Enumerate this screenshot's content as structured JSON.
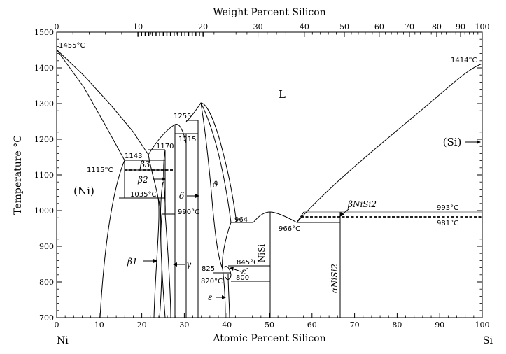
{
  "chart_data": {
    "type": "phase-diagram",
    "title": "",
    "xlabel_bottom": "Atomic Percent Silicon",
    "xlabel_top": "Weight Percent Silicon",
    "ylabel": "Temperature °C",
    "xlim": [
      0,
      100
    ],
    "ylim": [
      700,
      1500
    ],
    "x_ticks": [
      "0",
      "10",
      "20",
      "30",
      "40",
      "50",
      "60",
      "70",
      "80",
      "90",
      "100"
    ],
    "x_ticks_top": [
      {
        "label": "0",
        "at": 0
      },
      {
        "label": "10",
        "at": 19.1
      },
      {
        "label": "20",
        "at": 34.4
      },
      {
        "label": "30",
        "at": 47.3
      },
      {
        "label": "40",
        "at": 58.2
      },
      {
        "label": "50",
        "at": 67.6
      },
      {
        "label": "60",
        "at": 75.8
      },
      {
        "label": "70",
        "at": 82.9
      },
      {
        "label": "80",
        "at": 89.3
      },
      {
        "label": "90",
        "at": 94.9
      },
      {
        "label": "100",
        "at": 100
      }
    ],
    "y_ticks": [
      "700",
      "800",
      "900",
      "1000",
      "1100",
      "1200",
      "1300",
      "1400",
      "1500"
    ],
    "left_end": "Ni",
    "right_end": "Si",
    "regions": {
      "liquid": "L",
      "ni_solid": "(Ni)",
      "si_solid": "(Si)",
      "beta1": "β1",
      "beta2": "β2",
      "beta3": "β3",
      "gamma": "γ",
      "delta": "δ",
      "theta": "ϑ",
      "epsilon": "ε",
      "epsilon_prime": "ε′",
      "nisi": "NiSi",
      "alpha_nisi2": "αNiSi2",
      "beta_nisi2": "βNiSi2"
    },
    "temperature_labels": {
      "ni_melt": "1455°C",
      "si_melt": "1414°C",
      "t1143": "1143",
      "t1170": "1170",
      "t1115": "1115°C",
      "t1035": "1035°C",
      "t990": "990°C",
      "t1255": "1255",
      "t1215": "1215",
      "t964": "964",
      "t966": "966°C",
      "t993": "993°C",
      "t981": "981°C",
      "t845": "845°C",
      "t825": "825",
      "t820": "820°C",
      "t800": "800"
    },
    "key_points": [
      {
        "at_pct": 0,
        "temp": 1455
      },
      {
        "at_pct": 100,
        "temp": 1414
      },
      {
        "at_pct": 21.5,
        "temp": 1143
      },
      {
        "at_pct": 33.3,
        "temp": 1305
      },
      {
        "at_pct": 46.5,
        "temp": 964
      },
      {
        "at_pct": 50,
        "temp": 992
      },
      {
        "at_pct": 56,
        "temp": 966
      },
      {
        "at_pct": 66.7,
        "temp": 993
      },
      {
        "at_pct": 66.7,
        "temp": 981
      }
    ]
  }
}
